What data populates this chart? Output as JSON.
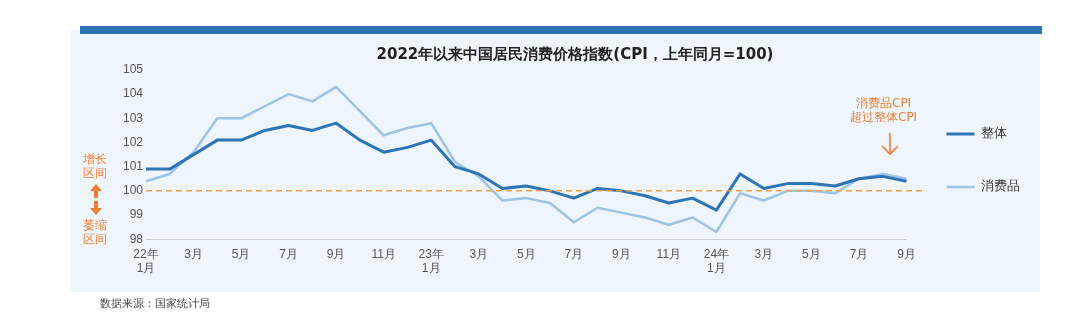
{
  "chart_data": {
    "type": "line",
    "title": "2022年以来中国居民消费价格指数(CPI，上年同月=100)",
    "categories": [
      "22年\n1月",
      null,
      "3月",
      null,
      "5月",
      null,
      "7月",
      null,
      "9月",
      null,
      "11月",
      null,
      "23年\n1月",
      null,
      "3月",
      null,
      "5月",
      null,
      "7月",
      null,
      "9月",
      null,
      "11月",
      null,
      "24年\n1月",
      null,
      "3月",
      null,
      "5月",
      null,
      "7月",
      null,
      "9月"
    ],
    "series": [
      {
        "name": "整体",
        "color": "#2e75b6",
        "values": [
          100.9,
          100.9,
          101.5,
          102.1,
          102.1,
          102.5,
          102.7,
          102.5,
          102.8,
          102.1,
          101.6,
          101.8,
          102.1,
          101.0,
          100.7,
          100.1,
          100.2,
          100.0,
          99.7,
          100.1,
          100.0,
          99.8,
          99.5,
          99.7,
          99.2,
          100.7,
          100.1,
          100.3,
          100.3,
          100.2,
          100.5,
          100.6,
          100.4
        ]
      },
      {
        "name": "消费品",
        "color": "#9dc3e6",
        "values": [
          100.4,
          100.7,
          101.6,
          103.0,
          103.0,
          103.5,
          104.0,
          103.7,
          104.3,
          103.3,
          102.3,
          102.6,
          102.8,
          101.2,
          100.6,
          99.6,
          99.7,
          99.5,
          98.7,
          99.3,
          99.1,
          98.9,
          98.6,
          98.9,
          98.3,
          99.9,
          99.6,
          100.0,
          100.0,
          99.9,
          100.5,
          100.7,
          100.5
        ]
      }
    ],
    "ylim": [
      98,
      105
    ],
    "yticks": [
      98,
      99,
      100,
      101,
      102,
      103,
      104,
      105
    ],
    "ref_lines": [
      {
        "axis": "y",
        "value": 100,
        "color": "#f0a040",
        "line_style": "dashed"
      }
    ],
    "legend": "right",
    "marker": "none",
    "line_style": "solid",
    "annotations": [
      "增长区间",
      "萎缩区间",
      "消费品CPI\n超过整体CPI",
      "数据来源：国家统计局"
    ]
  }
}
